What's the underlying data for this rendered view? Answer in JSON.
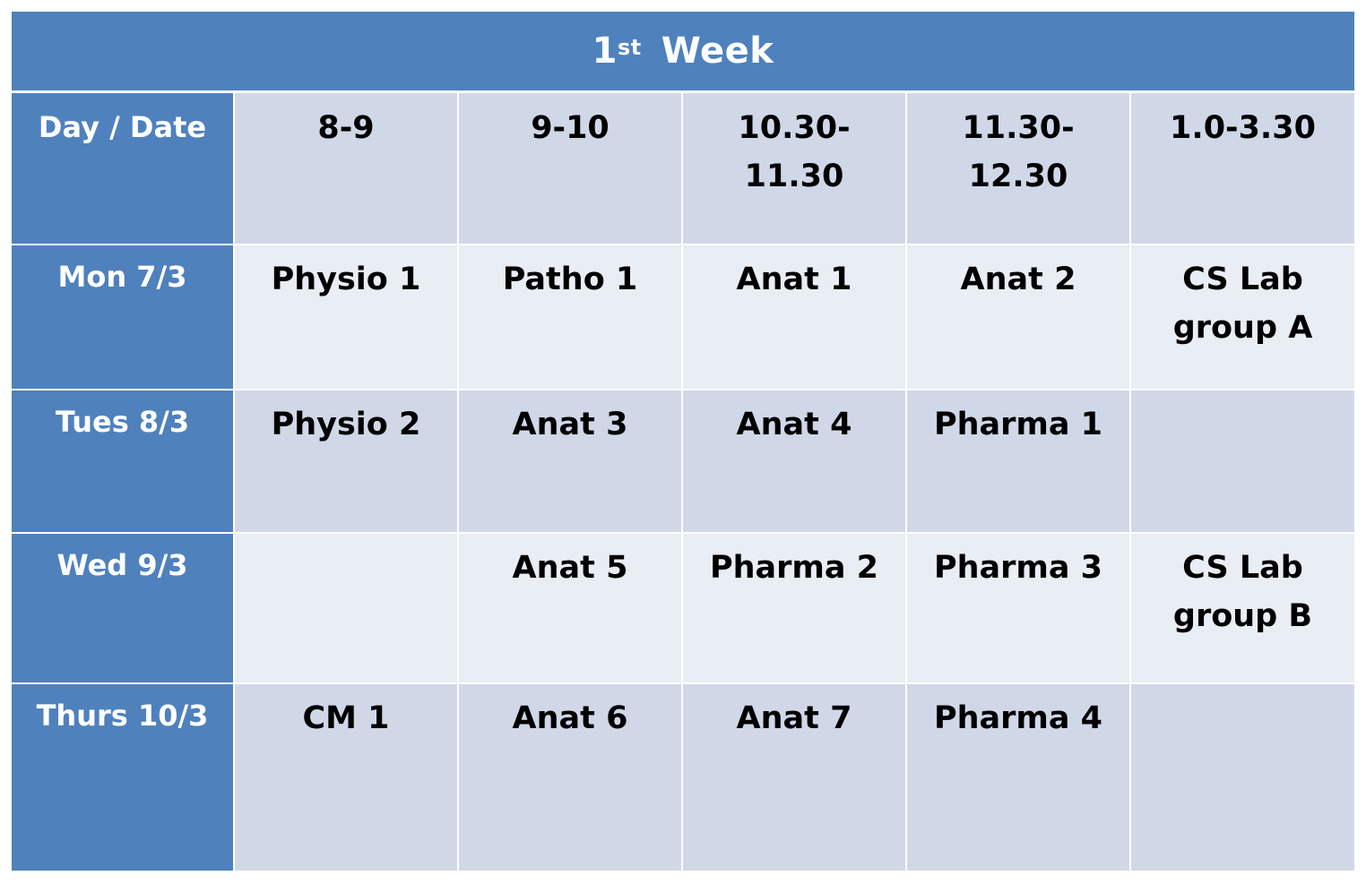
{
  "title": {
    "ordinal": "1",
    "suffix": "st",
    "word": "Week"
  },
  "header": {
    "day_date": "Day / Date",
    "slots": [
      "8-9",
      "9-10",
      "10.30-\n11.30",
      "11.30-\n12.30",
      "1.0-3.30"
    ]
  },
  "rows": [
    {
      "day": "Mon  7/3",
      "cells": [
        "Physio 1",
        "Patho 1",
        "Anat  1",
        "Anat  2",
        "CS Lab\ngroup A"
      ]
    },
    {
      "day": "Tues  8/3",
      "cells": [
        "Physio   2",
        "Anat   3",
        "Anat   4",
        "Pharma   1",
        ""
      ]
    },
    {
      "day": "Wed  9/3",
      "cells": [
        "",
        "Anat  5",
        "Pharma  2",
        "Pharma   3",
        "CS Lab\ngroup  B"
      ]
    },
    {
      "day": "Thurs  10/3",
      "cells": [
        "CM   1",
        "Anat  6",
        "Anat   7",
        "Pharma  4",
        ""
      ]
    }
  ],
  "colors": {
    "header_blue": "#4f81bd",
    "row_light": "#e9edf4",
    "row_dark": "#d0d8e8"
  }
}
